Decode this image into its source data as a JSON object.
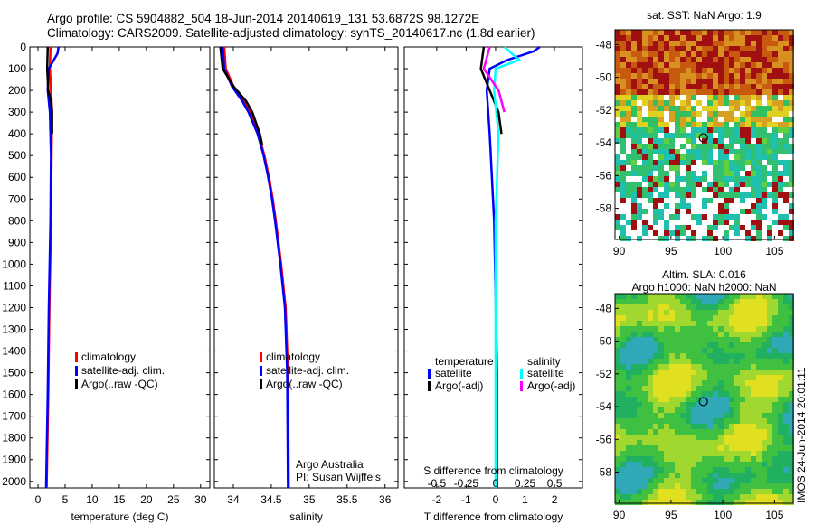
{
  "title": {
    "line1": "Argo profile: CS 5904882_504 18-Jun-2014 20140619_131 53.6872S 98.1272E",
    "line2": "Climatology: CARS2009. Satellite-adjusted climatology: synTS_20140617.nc (1.8d earlier)"
  },
  "chart_data": [
    {
      "type": "line",
      "name": "temperature-profile",
      "xlabel": "temperature (deg C)",
      "ylabel": "",
      "xlim": [
        -1.5,
        31.7
      ],
      "ylim": [
        2030,
        0
      ],
      "xticks": [
        0,
        5,
        10,
        15,
        20,
        25,
        30
      ],
      "yticks": [
        0,
        100,
        200,
        300,
        400,
        500,
        600,
        700,
        800,
        900,
        1000,
        1100,
        1200,
        1300,
        1400,
        1500,
        1600,
        1700,
        1800,
        1900,
        2000
      ],
      "legend": [
        "climatology",
        "satellite-adj. clim.",
        "Argo(..raw -QC)"
      ],
      "series": [
        {
          "name": "climatology",
          "color": "#ff0000",
          "depth": [
            0,
            100,
            300,
            500,
            800,
            1200,
            1600,
            2030
          ],
          "values": [
            2.3,
            2.2,
            2.6,
            2.5,
            2.4,
            2.1,
            1.9,
            1.6
          ]
        },
        {
          "name": "satellite-adj. clim.",
          "color": "#0000ff",
          "depth": [
            0,
            30,
            100,
            200,
            300,
            500,
            800,
            1200,
            1600,
            2030
          ],
          "values": [
            3.8,
            3.6,
            2.0,
            1.8,
            2.2,
            2.4,
            2.3,
            2.0,
            1.8,
            1.5
          ]
        },
        {
          "name": "Argo(..raw -QC)",
          "color": "#000000",
          "depth": [
            0,
            100,
            200,
            250,
            300,
            400
          ],
          "values": [
            1.8,
            1.7,
            1.9,
            2.4,
            2.6,
            2.6
          ]
        }
      ]
    },
    {
      "type": "line",
      "name": "salinity-profile",
      "xlabel": "salinity",
      "xlim": [
        33.75,
        36.17
      ],
      "ylim": [
        2030,
        0
      ],
      "xticks": [
        34,
        34.5,
        35,
        35.5,
        36
      ],
      "xticklabels": [
        "34",
        "34.5",
        "35",
        "35.5",
        "36"
      ],
      "legend": [
        "climatology",
        "satellite-adj. clim.",
        "Argo(..raw -QC)"
      ],
      "annotation": [
        "Argo Australia",
        "PI: Susan Wijffels"
      ],
      "series": [
        {
          "name": "climatology",
          "color": "#ff0000",
          "depth": [
            0,
            100,
            180,
            250,
            300,
            400,
            500,
            600,
            700,
            800,
            1000,
            1200,
            1500,
            2030
          ],
          "values": [
            33.88,
            33.9,
            34.0,
            34.14,
            34.22,
            34.33,
            34.41,
            34.47,
            34.52,
            34.56,
            34.63,
            34.69,
            34.72,
            34.73
          ]
        },
        {
          "name": "satellite-adj. clim.",
          "color": "#0000ff",
          "depth": [
            0,
            100,
            180,
            250,
            300,
            400,
            500,
            600,
            700,
            800,
            1000,
            1200,
            1500,
            2030
          ],
          "values": [
            33.86,
            33.88,
            33.98,
            34.12,
            34.2,
            34.32,
            34.4,
            34.46,
            34.51,
            34.55,
            34.62,
            34.68,
            34.71,
            34.72
          ]
        },
        {
          "name": "Argo(..raw -QC)",
          "color": "#000000",
          "depth": [
            0,
            100,
            180,
            250,
            300,
            400,
            450
          ],
          "values": [
            33.83,
            33.86,
            34.0,
            34.17,
            34.25,
            34.35,
            34.38
          ]
        }
      ]
    },
    {
      "type": "line",
      "name": "difference-profile",
      "xlabel": "T difference from climatology",
      "x2label": "S difference from climatology",
      "xlim": [
        -3.1,
        2.95
      ],
      "ylim": [
        2030,
        0
      ],
      "xticks": [
        -2,
        -1,
        0,
        1,
        2
      ],
      "x2ticks": [
        -0.5,
        -0.25,
        0,
        0.25,
        0.5
      ],
      "x2ticklabels": [
        "-0.5",
        "-0.25",
        "0",
        "0.25",
        "0.5"
      ],
      "legend_groups": [
        {
          "title": "temperature",
          "items": [
            "satellite",
            "Argo(-adj)"
          ]
        },
        {
          "title": "salinity",
          "items": [
            "satellite",
            "Argo(-adj)"
          ]
        }
      ],
      "series": [
        {
          "name": "temperature satellite",
          "color": "#0000ff",
          "depth": [
            0,
            20,
            60,
            100,
            200,
            400,
            800,
            1500,
            2030
          ],
          "values": [
            1.5,
            1.3,
            0.4,
            -0.2,
            -0.3,
            -0.2,
            -0.05,
            0.05,
            0.05
          ]
        },
        {
          "name": "temperature Argo(-adj)",
          "color": "#000000",
          "depth": [
            0,
            100,
            200,
            300,
            400
          ],
          "values": [
            -0.4,
            -0.5,
            -0.2,
            0.1,
            0.2
          ]
        },
        {
          "name": "salinity satellite (T-axis scaled)",
          "color": "#00ffff",
          "depth": [
            0,
            60,
            100,
            200,
            400,
            800,
            1500,
            2030
          ],
          "values": [
            0.3,
            0.8,
            0.0,
            -0.05,
            0.1,
            0.0,
            0.0,
            0.0
          ]
        },
        {
          "name": "salinity Argo(-adj)",
          "color": "#ff00ff",
          "depth": [
            0,
            100,
            200,
            300
          ],
          "values": [
            -0.2,
            -0.4,
            0.1,
            0.3
          ]
        }
      ]
    },
    {
      "type": "heatmap",
      "name": "sst-map",
      "title": "sat. SST: NaN Argo: 1.9",
      "xlim": [
        89.6,
        106.8
      ],
      "ylim": [
        -59.9,
        -47.1
      ],
      "xticks": [
        90,
        95,
        100,
        105
      ],
      "yticks": [
        -48,
        -50,
        -52,
        -54,
        -56,
        -58
      ],
      "argo_position": [
        98.13,
        -53.69
      ]
    },
    {
      "type": "heatmap",
      "name": "sla-map",
      "title": [
        "Altim. SLA: 0.016",
        "Argo h1000: NaN h2000: NaN"
      ],
      "xlim": [
        89.6,
        106.8
      ],
      "ylim": [
        -59.9,
        -47.1
      ],
      "xticks": [
        90,
        95,
        100,
        105
      ],
      "yticks": [
        -48,
        -50,
        -52,
        -54,
        -56,
        -58
      ],
      "argo_position": [
        98.13,
        -53.69
      ],
      "stamp": "IMOS 24-Jun-2014 20:01:11"
    }
  ]
}
